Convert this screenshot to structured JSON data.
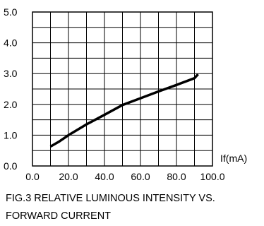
{
  "chart_data": {
    "type": "line",
    "title": "",
    "caption": [
      "FIG.3 RELATIVE LUMINOUS INTENSITY VS.",
      "FORWARD CURRENT"
    ],
    "xlabel": "If(mA)",
    "ylabel": "",
    "xlim": [
      0,
      100
    ],
    "ylim": [
      0,
      5
    ],
    "x_ticks": [
      "0.0",
      "20.0",
      "40.0",
      "60.0",
      "80.0",
      "100.0"
    ],
    "y_ticks": [
      "0.0",
      "1.0",
      "2.0",
      "3.0",
      "4.0",
      "5.0"
    ],
    "grid": true,
    "x": [
      10,
      15,
      20,
      30,
      40,
      50,
      60,
      70,
      80,
      90,
      92
    ],
    "values": [
      0.63,
      0.8,
      1.0,
      1.35,
      1.66,
      1.98,
      2.2,
      2.42,
      2.63,
      2.85,
      2.98
    ]
  }
}
